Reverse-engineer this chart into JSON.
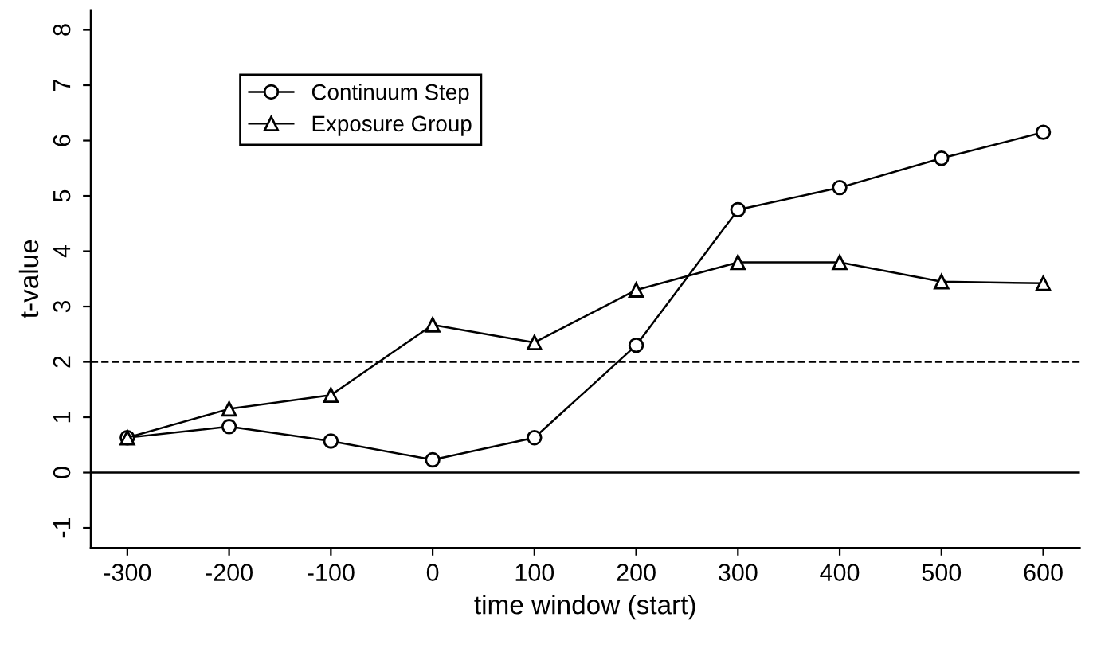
{
  "chart_data": {
    "type": "line",
    "xlabel": "time window (start)",
    "ylabel": "t-value",
    "x": [
      -300,
      -200,
      -100,
      0,
      100,
      200,
      300,
      400,
      500,
      600
    ],
    "series": [
      {
        "name": "Continuum Step",
        "color": "#000000",
        "marker": "circle",
        "values": [
          0.63,
          0.83,
          0.57,
          0.23,
          0.63,
          2.3,
          4.75,
          5.15,
          5.68,
          6.15
        ]
      },
      {
        "name": "Exposure Group",
        "color": "#000000",
        "marker": "triangle",
        "values": [
          0.63,
          1.15,
          1.4,
          2.67,
          2.35,
          3.3,
          3.8,
          3.8,
          3.45,
          3.42
        ]
      }
    ],
    "xlim": [
      -336,
      636
    ],
    "ylim": [
      -1.36,
      8.36
    ],
    "xticks": [
      -300,
      -200,
      -100,
      0,
      100,
      200,
      300,
      400,
      500,
      600
    ],
    "yticks": [
      -1,
      0,
      1,
      2,
      3,
      4,
      5,
      6,
      7,
      8
    ],
    "ref_lines": [
      {
        "axis": "y",
        "value": 2,
        "line_style": "dashed",
        "color": "#000000"
      },
      {
        "axis": "y",
        "value": 0,
        "line_style": "solid",
        "color": "#000000"
      }
    ],
    "legend": "top left",
    "grid": false,
    "line_style": "solid"
  }
}
